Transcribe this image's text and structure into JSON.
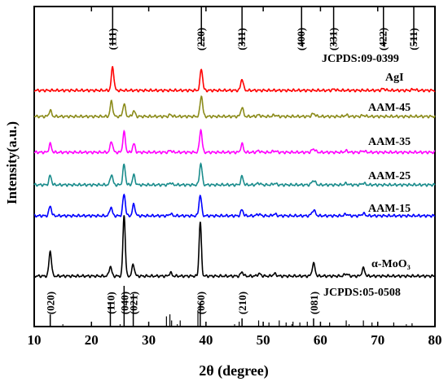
{
  "chart_data": {
    "type": "line",
    "xlabel": "2θ (degree)",
    "ylabel": "Intensity(a.u.)",
    "xlim": [
      10,
      80
    ],
    "xticks": [
      10,
      20,
      30,
      40,
      50,
      60,
      70,
      80
    ],
    "grid": false,
    "series": [
      {
        "name": "AgI",
        "color": "#ff0000",
        "peaks": [
          {
            "x": 23.7,
            "h": 0.85,
            "w": 0.22
          },
          {
            "x": 39.2,
            "h": 0.78,
            "w": 0.22
          },
          {
            "x": 46.3,
            "h": 0.42,
            "w": 0.22
          },
          {
            "x": 62.4,
            "h": 0.04,
            "w": 0.3
          },
          {
            "x": 71.0,
            "h": 0.06,
            "w": 0.3
          },
          {
            "x": 76.3,
            "h": 0.04,
            "w": 0.3
          }
        ]
      },
      {
        "name": "AAM-45",
        "color": "#8b8b1a",
        "peaks": [
          {
            "x": 12.8,
            "h": 0.22,
            "w": 0.22
          },
          {
            "x": 23.5,
            "h": 0.55,
            "w": 0.22
          },
          {
            "x": 25.7,
            "h": 0.45,
            "w": 0.22
          },
          {
            "x": 27.4,
            "h": 0.2,
            "w": 0.22
          },
          {
            "x": 33.8,
            "h": 0.07,
            "w": 0.22
          },
          {
            "x": 39.2,
            "h": 0.75,
            "w": 0.22
          },
          {
            "x": 46.3,
            "h": 0.33,
            "w": 0.22
          },
          {
            "x": 49.2,
            "h": 0.05,
            "w": 0.3
          },
          {
            "x": 52.0,
            "h": 0.05,
            "w": 0.3
          },
          {
            "x": 58.8,
            "h": 0.1,
            "w": 0.3
          },
          {
            "x": 64.5,
            "h": 0.05,
            "w": 0.3
          },
          {
            "x": 67.5,
            "h": 0.04,
            "w": 0.3
          }
        ]
      },
      {
        "name": "AAM-35",
        "color": "#ff00ff",
        "peaks": [
          {
            "x": 12.8,
            "h": 0.3,
            "w": 0.22
          },
          {
            "x": 23.5,
            "h": 0.4,
            "w": 0.22
          },
          {
            "x": 25.7,
            "h": 0.72,
            "w": 0.22
          },
          {
            "x": 27.4,
            "h": 0.3,
            "w": 0.22
          },
          {
            "x": 33.8,
            "h": 0.07,
            "w": 0.22
          },
          {
            "x": 39.1,
            "h": 0.82,
            "w": 0.22
          },
          {
            "x": 46.3,
            "h": 0.3,
            "w": 0.22
          },
          {
            "x": 49.2,
            "h": 0.05,
            "w": 0.3
          },
          {
            "x": 52.0,
            "h": 0.05,
            "w": 0.3
          },
          {
            "x": 58.8,
            "h": 0.12,
            "w": 0.3
          },
          {
            "x": 64.5,
            "h": 0.05,
            "w": 0.3
          },
          {
            "x": 67.5,
            "h": 0.05,
            "w": 0.3
          }
        ]
      },
      {
        "name": "AAM-25",
        "color": "#1a8c8c",
        "peaks": [
          {
            "x": 12.8,
            "h": 0.33,
            "w": 0.22
          },
          {
            "x": 23.5,
            "h": 0.38,
            "w": 0.22
          },
          {
            "x": 25.7,
            "h": 0.72,
            "w": 0.22
          },
          {
            "x": 27.4,
            "h": 0.35,
            "w": 0.22
          },
          {
            "x": 33.8,
            "h": 0.08,
            "w": 0.22
          },
          {
            "x": 39.1,
            "h": 0.78,
            "w": 0.22
          },
          {
            "x": 46.3,
            "h": 0.3,
            "w": 0.22
          },
          {
            "x": 49.2,
            "h": 0.06,
            "w": 0.3
          },
          {
            "x": 52.0,
            "h": 0.05,
            "w": 0.3
          },
          {
            "x": 58.8,
            "h": 0.16,
            "w": 0.3
          },
          {
            "x": 64.5,
            "h": 0.05,
            "w": 0.3
          },
          {
            "x": 67.5,
            "h": 0.06,
            "w": 0.3
          }
        ]
      },
      {
        "name": "AAM-15",
        "color": "#0000ff",
        "peaks": [
          {
            "x": 12.8,
            "h": 0.35,
            "w": 0.22
          },
          {
            "x": 23.4,
            "h": 0.32,
            "w": 0.22
          },
          {
            "x": 25.7,
            "h": 0.78,
            "w": 0.22
          },
          {
            "x": 27.4,
            "h": 0.42,
            "w": 0.22
          },
          {
            "x": 33.8,
            "h": 0.08,
            "w": 0.22
          },
          {
            "x": 39.0,
            "h": 0.75,
            "w": 0.22
          },
          {
            "x": 46.3,
            "h": 0.22,
            "w": 0.22
          },
          {
            "x": 49.2,
            "h": 0.06,
            "w": 0.3
          },
          {
            "x": 52.0,
            "h": 0.06,
            "w": 0.3
          },
          {
            "x": 58.8,
            "h": 0.2,
            "w": 0.3
          },
          {
            "x": 64.5,
            "h": 0.06,
            "w": 0.3
          },
          {
            "x": 67.5,
            "h": 0.08,
            "w": 0.3
          }
        ]
      },
      {
        "name": "α-MoO₃",
        "color": "#000000",
        "peaks": [
          {
            "x": 12.8,
            "h": 0.9,
            "w": 0.22
          },
          {
            "x": 23.3,
            "h": 0.35,
            "w": 0.22
          },
          {
            "x": 25.7,
            "h": 2.2,
            "w": 0.2
          },
          {
            "x": 27.3,
            "h": 0.42,
            "w": 0.22
          },
          {
            "x": 33.8,
            "h": 0.12,
            "w": 0.22
          },
          {
            "x": 39.0,
            "h": 1.95,
            "w": 0.2
          },
          {
            "x": 46.3,
            "h": 0.15,
            "w": 0.22
          },
          {
            "x": 49.3,
            "h": 0.08,
            "w": 0.3
          },
          {
            "x": 52.0,
            "h": 0.08,
            "w": 0.3
          },
          {
            "x": 58.8,
            "h": 0.45,
            "w": 0.25
          },
          {
            "x": 64.5,
            "h": 0.08,
            "w": 0.3
          },
          {
            "x": 67.5,
            "h": 0.28,
            "w": 0.25
          }
        ]
      }
    ],
    "reference_AgI": {
      "label": "JCPDS:09-0399",
      "lines": [
        {
          "x": 23.7,
          "hkl": "(111)"
        },
        {
          "x": 39.2,
          "hkl": "(220)"
        },
        {
          "x": 46.3,
          "hkl": "(311)"
        },
        {
          "x": 56.7,
          "hkl": "(400)"
        },
        {
          "x": 62.3,
          "hkl": "(331)"
        },
        {
          "x": 71.0,
          "hkl": "(422)"
        },
        {
          "x": 76.3,
          "hkl": "(511)"
        }
      ]
    },
    "reference_MoO3": {
      "label": "JCPDS:05-0508",
      "labeled": [
        {
          "x": 12.8,
          "hkl": "(020)",
          "h": 0.3
        },
        {
          "x": 23.3,
          "hkl": "(110)",
          "h": 0.6
        },
        {
          "x": 25.7,
          "hkl": "(040)",
          "h": 1.0
        },
        {
          "x": 27.3,
          "hkl": "(021)",
          "h": 0.8
        },
        {
          "x": 39.0,
          "hkl": "(060)",
          "h": 0.6
        },
        {
          "x": 46.3,
          "hkl": "(210)",
          "h": 0.2
        },
        {
          "x": 58.8,
          "hkl": "(081)",
          "h": 0.2
        }
      ],
      "minor_lines": [
        {
          "x": 33.1,
          "h": 0.25
        },
        {
          "x": 33.7,
          "h": 0.3
        },
        {
          "x": 34.0,
          "h": 0.15
        },
        {
          "x": 35.5,
          "h": 0.15
        },
        {
          "x": 38.6,
          "h": 0.4
        },
        {
          "x": 45.8,
          "h": 0.12
        },
        {
          "x": 49.2,
          "h": 0.15
        },
        {
          "x": 51.0,
          "h": 0.1
        },
        {
          "x": 52.8,
          "h": 0.15
        },
        {
          "x": 54.0,
          "h": 0.1
        },
        {
          "x": 55.2,
          "h": 0.12
        },
        {
          "x": 56.4,
          "h": 0.1
        },
        {
          "x": 57.7,
          "h": 0.12
        },
        {
          "x": 61.6,
          "h": 0.1
        },
        {
          "x": 64.5,
          "h": 0.15
        },
        {
          "x": 67.5,
          "h": 0.15
        },
        {
          "x": 69.0,
          "h": 0.1
        },
        {
          "x": 72.8,
          "h": 0.1
        },
        {
          "x": 76.0,
          "h": 0.08
        }
      ]
    }
  }
}
